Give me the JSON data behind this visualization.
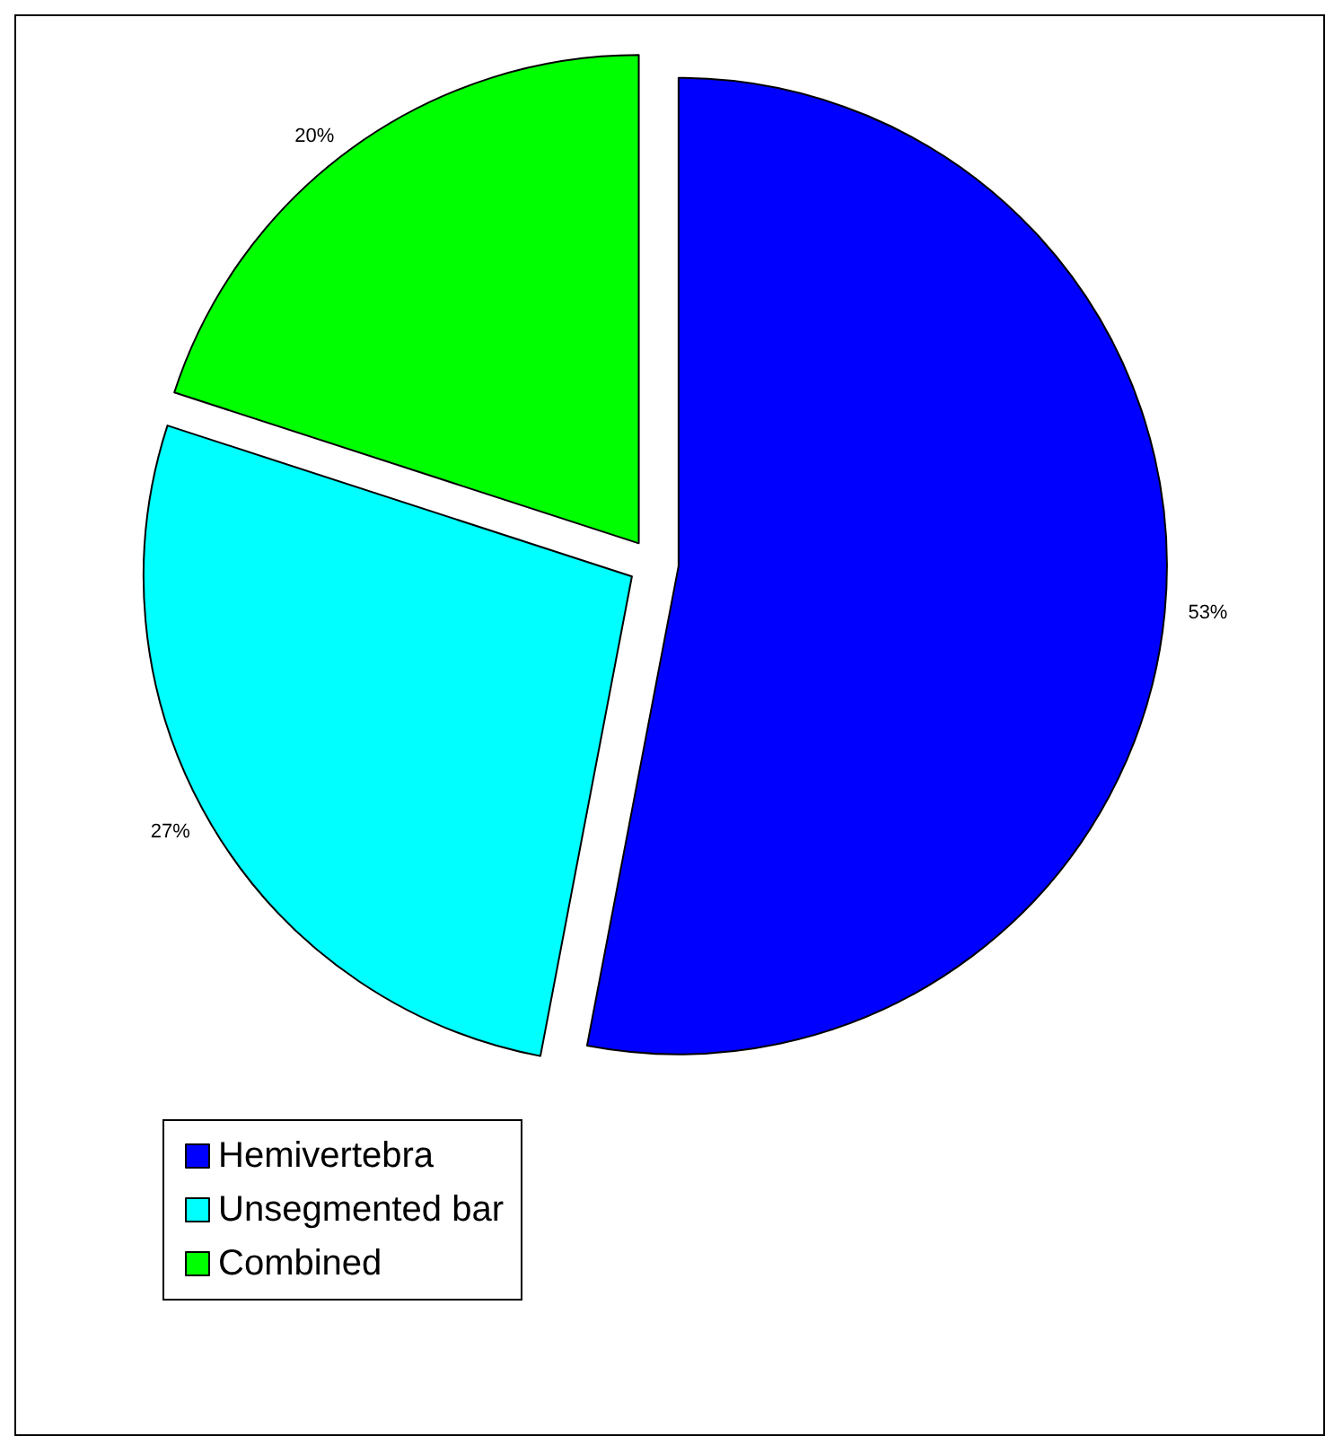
{
  "chart_data": {
    "type": "pie",
    "categories": [
      "Hemivertebra",
      "Unsegmented bar",
      "Combined"
    ],
    "values": [
      53,
      27,
      20
    ],
    "colors": [
      "#0000ff",
      "#00ffff",
      "#00ff00"
    ],
    "value_labels": [
      "53%",
      "27%",
      "20%"
    ],
    "legend": "bottom left"
  }
}
